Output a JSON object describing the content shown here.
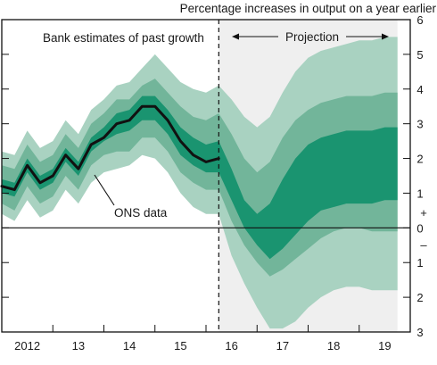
{
  "chart_data": {
    "type": "area",
    "title": "Percentage increases in output on a year earlier",
    "annotations": {
      "past": "Bank estimates of past growth",
      "projection": "Projection",
      "ons": "ONS data"
    },
    "x_labels": [
      {
        "label": "2012",
        "x": 2012.5
      },
      {
        "label": "13",
        "x": 2013.5
      },
      {
        "label": "14",
        "x": 2014.5
      },
      {
        "label": "15",
        "x": 2015.5
      },
      {
        "label": "16",
        "x": 2016.5
      },
      {
        "label": "17",
        "x": 2017.5
      },
      {
        "label": "18",
        "x": 2018.5
      },
      {
        "label": "19",
        "x": 2019.5
      }
    ],
    "y_ticks": [
      {
        "label": "6",
        "value": 6
      },
      {
        "label": "5",
        "value": 5
      },
      {
        "label": "4",
        "value": 4
      },
      {
        "label": "3",
        "value": 3
      },
      {
        "label": "2",
        "value": 2
      },
      {
        "label": "1",
        "value": 1
      },
      {
        "label": "0",
        "value": 0
      },
      {
        "label": "1",
        "value": -1
      },
      {
        "label": "2",
        "value": -2
      },
      {
        "label": "3",
        "value": -3
      }
    ],
    "plus_sign": "+",
    "minus_sign": "–",
    "xlim": [
      2012.0,
      2020.0
    ],
    "ylim": [
      -3,
      6
    ],
    "projection_start": 2016.25,
    "colors": {
      "outer": "#a9d2c1",
      "middle": "#72b59a",
      "inner": "#1a9470",
      "shade": "#efefef",
      "line": "#111111"
    },
    "fan_x": [
      2012.0,
      2012.25,
      2012.5,
      2012.75,
      2013.0,
      2013.25,
      2013.5,
      2013.75,
      2014.0,
      2014.25,
      2014.5,
      2014.75,
      2015.0,
      2015.25,
      2015.5,
      2015.75,
      2016.0,
      2016.25,
      2016.5,
      2016.75,
      2017.0,
      2017.25,
      2017.5,
      2017.75,
      2018.0,
      2018.25,
      2018.5,
      2018.75,
      2019.0,
      2019.25,
      2019.5,
      2019.75
    ],
    "bands": {
      "outer": {
        "upper": [
          2.2,
          2.1,
          2.8,
          2.3,
          2.5,
          3.1,
          2.7,
          3.4,
          3.7,
          4.1,
          4.2,
          4.6,
          5.0,
          4.6,
          4.2,
          4.0,
          3.9,
          4.1,
          3.7,
          3.2,
          2.9,
          3.2,
          3.9,
          4.5,
          4.9,
          5.1,
          5.2,
          5.3,
          5.4,
          5.4,
          5.5,
          5.5
        ],
        "lower": [
          0.4,
          0.2,
          0.8,
          0.3,
          0.5,
          1.1,
          0.7,
          1.3,
          1.6,
          1.7,
          1.8,
          2.1,
          2.0,
          1.6,
          1.0,
          0.6,
          0.4,
          0.4,
          -0.8,
          -1.6,
          -2.3,
          -2.9,
          -2.9,
          -2.7,
          -2.3,
          -2.0,
          -1.8,
          -1.7,
          -1.7,
          -1.8,
          -1.8,
          -1.8
        ]
      },
      "middle": {
        "upper": [
          1.8,
          1.7,
          2.4,
          1.9,
          2.1,
          2.7,
          2.3,
          3.0,
          3.3,
          3.7,
          3.7,
          4.1,
          4.3,
          3.9,
          3.5,
          3.2,
          3.1,
          3.3,
          2.7,
          2.0,
          1.6,
          1.9,
          2.6,
          3.1,
          3.4,
          3.6,
          3.7,
          3.8,
          3.8,
          3.8,
          3.9,
          3.9
        ],
        "lower": [
          0.7,
          0.5,
          1.2,
          0.7,
          0.9,
          1.5,
          1.1,
          1.8,
          2.1,
          2.2,
          2.2,
          2.6,
          2.6,
          2.2,
          1.6,
          1.3,
          1.1,
          1.1,
          0.2,
          -0.5,
          -1.0,
          -1.4,
          -1.2,
          -0.9,
          -0.6,
          -0.3,
          -0.1,
          0.0,
          0.0,
          -0.1,
          -0.1,
          -0.1
        ]
      },
      "inner": {
        "upper": [
          1.4,
          1.3,
          2.0,
          1.5,
          1.7,
          2.3,
          1.9,
          2.6,
          2.9,
          3.3,
          3.4,
          3.8,
          3.8,
          3.4,
          2.9,
          2.6,
          2.4,
          2.5,
          1.7,
          0.8,
          0.4,
          0.7,
          1.4,
          2.0,
          2.4,
          2.6,
          2.7,
          2.8,
          2.8,
          2.8,
          2.9,
          2.9
        ],
        "lower": [
          1.0,
          0.9,
          1.6,
          1.1,
          1.3,
          1.9,
          1.5,
          2.2,
          2.5,
          2.7,
          2.8,
          3.1,
          3.1,
          2.7,
          2.1,
          1.8,
          1.6,
          1.6,
          0.8,
          0.0,
          -0.5,
          -0.9,
          -0.6,
          -0.2,
          0.2,
          0.5,
          0.6,
          0.7,
          0.7,
          0.7,
          0.8,
          0.8
        ]
      }
    },
    "ons_series": {
      "x": [
        2012.0,
        2012.25,
        2012.5,
        2012.75,
        2013.0,
        2013.25,
        2013.5,
        2013.75,
        2014.0,
        2014.25,
        2014.5,
        2014.75,
        2015.0,
        2015.25,
        2015.5,
        2015.75,
        2016.0,
        2016.25
      ],
      "y": [
        1.2,
        1.1,
        1.8,
        1.3,
        1.5,
        2.1,
        1.7,
        2.4,
        2.6,
        3.0,
        3.1,
        3.5,
        3.5,
        3.1,
        2.5,
        2.1,
        1.9,
        2.0
      ]
    }
  }
}
